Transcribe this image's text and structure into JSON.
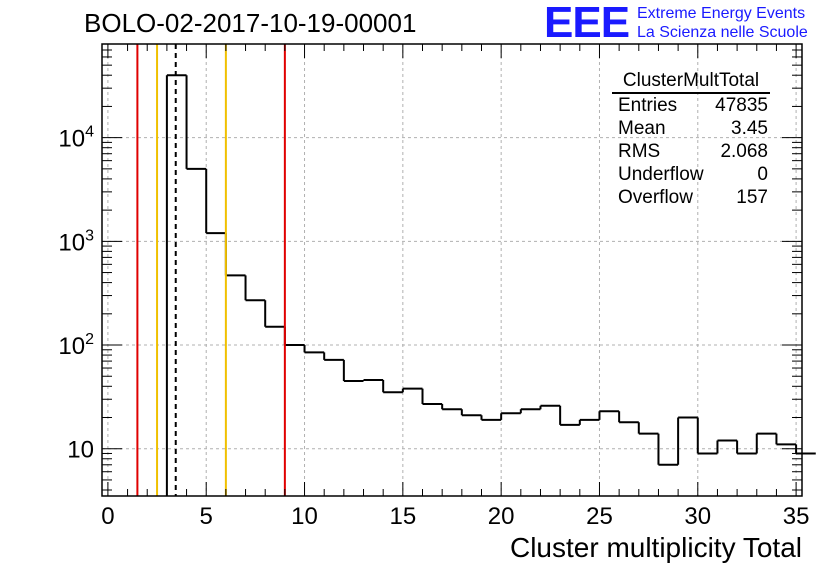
{
  "header": {
    "run_title": "BOLO-02-2017-10-19-00001"
  },
  "logo": {
    "mark": "EEE",
    "line1": "Extreme Energy Events",
    "line2": "La Scienza nelle Scuole",
    "color": "#1a1aff"
  },
  "stats_box": {
    "title": "ClusterMultTotal",
    "rows": [
      {
        "label": "Entries",
        "value": "47835"
      },
      {
        "label": "Mean",
        "value": "3.45"
      },
      {
        "label": "RMS",
        "value": "2.068"
      },
      {
        "label": "Underflow",
        "value": "0"
      },
      {
        "label": "Overflow",
        "value": "157"
      }
    ]
  },
  "chart_data": {
    "type": "bar",
    "histogram": true,
    "title": "BOLO-02-2017-10-19-00001",
    "xlabel": "Cluster multiplicity Total",
    "ylabel": "",
    "xlim": [
      -0.3,
      35.3
    ],
    "ylim": [
      3.5,
      80000
    ],
    "yscale": "log",
    "grid": true,
    "xticks": [
      0,
      5,
      10,
      15,
      20,
      25,
      30,
      35
    ],
    "yticks": [
      {
        "value": 10,
        "label": "10"
      },
      {
        "value": 100,
        "label": "10^2"
      },
      {
        "value": 1000,
        "label": "10^3"
      },
      {
        "value": 10000,
        "label": "10^4"
      }
    ],
    "bin_edges_start": 0,
    "bin_width": 1,
    "values": [
      0,
      0,
      0,
      40000,
      5000,
      1200,
      470,
      270,
      150,
      100,
      85,
      72,
      45,
      46,
      35,
      38,
      27,
      24,
      21,
      19,
      22,
      24,
      26,
      17,
      19,
      23,
      18,
      14,
      7,
      20,
      9,
      12,
      9,
      14,
      11,
      9
    ],
    "vertical_lines": [
      {
        "x": 1.5,
        "color": "#e00000",
        "style": "solid"
      },
      {
        "x": 2.5,
        "color": "#f0c000",
        "style": "solid"
      },
      {
        "x": 3.45,
        "color": "#000000",
        "style": "dashed"
      },
      {
        "x": 6.0,
        "color": "#f0c000",
        "style": "solid"
      },
      {
        "x": 9.0,
        "color": "#e00000",
        "style": "solid"
      }
    ]
  }
}
